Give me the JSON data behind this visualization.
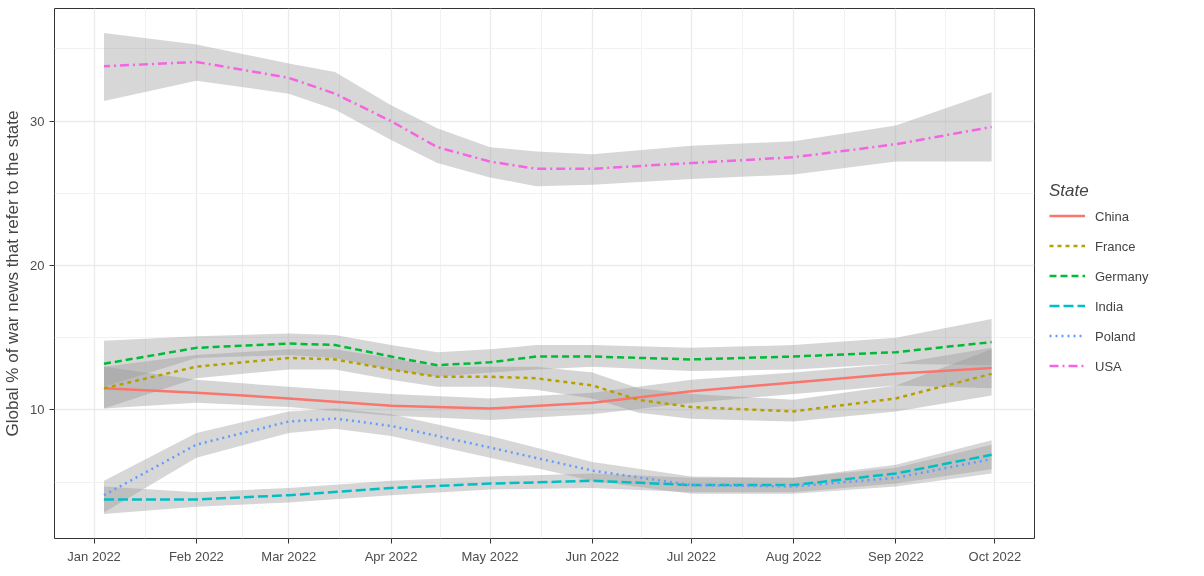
{
  "chart_data": {
    "type": "line",
    "ylabel": "Global % of war news that refer to the state",
    "legend_title": "State",
    "xlim": [
      "2021-12-20",
      "2022-10-13"
    ],
    "xticks": [
      {
        "value": "2022-01-01",
        "label": "Jan 2022"
      },
      {
        "value": "2022-02-01",
        "label": "Feb 2022"
      },
      {
        "value": "2022-03-01",
        "label": "Mar 2022"
      },
      {
        "value": "2022-04-01",
        "label": "Apr 2022"
      },
      {
        "value": "2022-05-01",
        "label": "May 2022"
      },
      {
        "value": "2022-06-01",
        "label": "Jun 2022"
      },
      {
        "value": "2022-07-01",
        "label": "Jul 2022"
      },
      {
        "value": "2022-08-01",
        "label": "Aug 2022"
      },
      {
        "value": "2022-09-01",
        "label": "Sep 2022"
      },
      {
        "value": "2022-10-01",
        "label": "Oct 2022"
      }
    ],
    "ylim": [
      1.1,
      37.8
    ],
    "yticks": [
      10,
      20,
      30
    ],
    "grid": true,
    "legend": "right",
    "marker": "none",
    "series": [
      {
        "name": "China",
        "color": "#f8766d",
        "line_style": "solid",
        "x": [
          "2022-01-04",
          "2022-02-01",
          "2022-03-01",
          "2022-04-01",
          "2022-05-01",
          "2022-06-01",
          "2022-07-01",
          "2022-08-01",
          "2022-09-01",
          "2022-09-30"
        ],
        "values": [
          11.5,
          11.2,
          10.8,
          10.3,
          10.1,
          10.5,
          11.3,
          11.9,
          12.5,
          12.9
        ],
        "upper": [
          13.0,
          12.1,
          11.6,
          11.1,
          10.8,
          11.2,
          12.1,
          12.6,
          13.2,
          14.3
        ],
        "lower": [
          10.1,
          10.5,
          10.2,
          9.6,
          9.3,
          9.7,
          10.5,
          11.1,
          11.7,
          11.5
        ]
      },
      {
        "name": "France",
        "color": "#b79f00",
        "line_style": "dashed",
        "x": [
          "2022-01-04",
          "2022-02-01",
          "2022-03-01",
          "2022-03-15",
          "2022-04-01",
          "2022-04-15",
          "2022-05-01",
          "2022-05-15",
          "2022-06-01",
          "2022-06-15",
          "2022-07-01",
          "2022-08-01",
          "2022-09-01",
          "2022-09-30"
        ],
        "values": [
          11.5,
          13.0,
          13.6,
          13.5,
          12.8,
          12.3,
          12.3,
          12.2,
          11.7,
          10.7,
          10.2,
          9.9,
          10.8,
          12.5
        ],
        "upper": [
          13.0,
          13.8,
          14.2,
          14.2,
          13.6,
          13.0,
          13.0,
          13.0,
          12.6,
          11.5,
          11.1,
          10.7,
          11.7,
          14.2
        ],
        "lower": [
          10.1,
          12.2,
          12.8,
          12.8,
          12.1,
          11.6,
          11.6,
          11.4,
          10.8,
          9.8,
          9.4,
          9.2,
          9.9,
          11.0
        ]
      },
      {
        "name": "Germany",
        "color": "#00ba38",
        "line_style": "dashed",
        "x": [
          "2022-01-04",
          "2022-02-01",
          "2022-03-01",
          "2022-03-15",
          "2022-04-01",
          "2022-04-15",
          "2022-05-01",
          "2022-05-15",
          "2022-06-01",
          "2022-07-01",
          "2022-08-01",
          "2022-09-01",
          "2022-09-30"
        ],
        "values": [
          13.2,
          14.3,
          14.6,
          14.5,
          13.7,
          13.1,
          13.3,
          13.7,
          13.7,
          13.5,
          13.7,
          14.0,
          14.7
        ],
        "upper": [
          14.8,
          15.1,
          15.3,
          15.2,
          14.5,
          14.0,
          14.2,
          14.5,
          14.5,
          14.3,
          14.5,
          15.0,
          16.3
        ],
        "lower": [
          11.6,
          13.6,
          13.8,
          13.6,
          12.8,
          12.3,
          12.6,
          12.8,
          13.0,
          12.7,
          12.8,
          13.2,
          13.1
        ]
      },
      {
        "name": "India",
        "color": "#00bfc4",
        "line_style": "dashed",
        "x": [
          "2022-01-04",
          "2022-02-01",
          "2022-03-01",
          "2022-04-01",
          "2022-05-01",
          "2022-06-01",
          "2022-07-01",
          "2022-08-01",
          "2022-09-01",
          "2022-09-30"
        ],
        "values": [
          3.8,
          3.8,
          4.1,
          4.6,
          4.9,
          5.1,
          4.8,
          4.8,
          5.6,
          6.9
        ],
        "upper": [
          4.7,
          4.3,
          4.6,
          5.1,
          5.4,
          5.6,
          5.3,
          5.3,
          6.2,
          7.9
        ],
        "lower": [
          2.8,
          3.3,
          3.6,
          4.1,
          4.5,
          4.6,
          4.3,
          4.3,
          4.9,
          5.9
        ]
      },
      {
        "name": "Poland",
        "color": "#619cff",
        "line_style": "dotted",
        "x": [
          "2022-01-04",
          "2022-02-01",
          "2022-03-01",
          "2022-03-15",
          "2022-04-01",
          "2022-05-01",
          "2022-06-01",
          "2022-07-01",
          "2022-08-01",
          "2022-09-01",
          "2022-09-30"
        ],
        "values": [
          4.1,
          7.6,
          9.2,
          9.4,
          8.9,
          7.4,
          5.8,
          4.8,
          4.7,
          5.3,
          6.6
        ],
        "upper": [
          5.1,
          8.4,
          9.9,
          10.1,
          9.7,
          8.2,
          6.4,
          5.4,
          5.3,
          6.0,
          7.6
        ],
        "lower": [
          2.9,
          6.7,
          8.4,
          8.7,
          8.2,
          6.7,
          5.1,
          4.2,
          4.2,
          4.7,
          5.6
        ]
      },
      {
        "name": "USA",
        "color": "#f564e3",
        "line_style": "dashed",
        "x": [
          "2022-01-04",
          "2022-02-01",
          "2022-03-01",
          "2022-03-15",
          "2022-04-01",
          "2022-04-15",
          "2022-05-01",
          "2022-05-15",
          "2022-06-01",
          "2022-07-01",
          "2022-08-01",
          "2022-09-01",
          "2022-09-30"
        ],
        "values": [
          33.8,
          34.1,
          33.0,
          31.9,
          30.0,
          28.2,
          27.2,
          26.7,
          26.7,
          27.1,
          27.5,
          28.4,
          29.6
        ],
        "upper": [
          36.1,
          35.3,
          34.0,
          33.4,
          31.1,
          29.5,
          28.2,
          27.9,
          27.7,
          28.3,
          28.6,
          29.7,
          32.0
        ],
        "lower": [
          31.4,
          32.8,
          31.9,
          30.8,
          28.7,
          27.1,
          26.1,
          25.5,
          25.6,
          26.0,
          26.3,
          27.2,
          27.2
        ]
      }
    ]
  }
}
